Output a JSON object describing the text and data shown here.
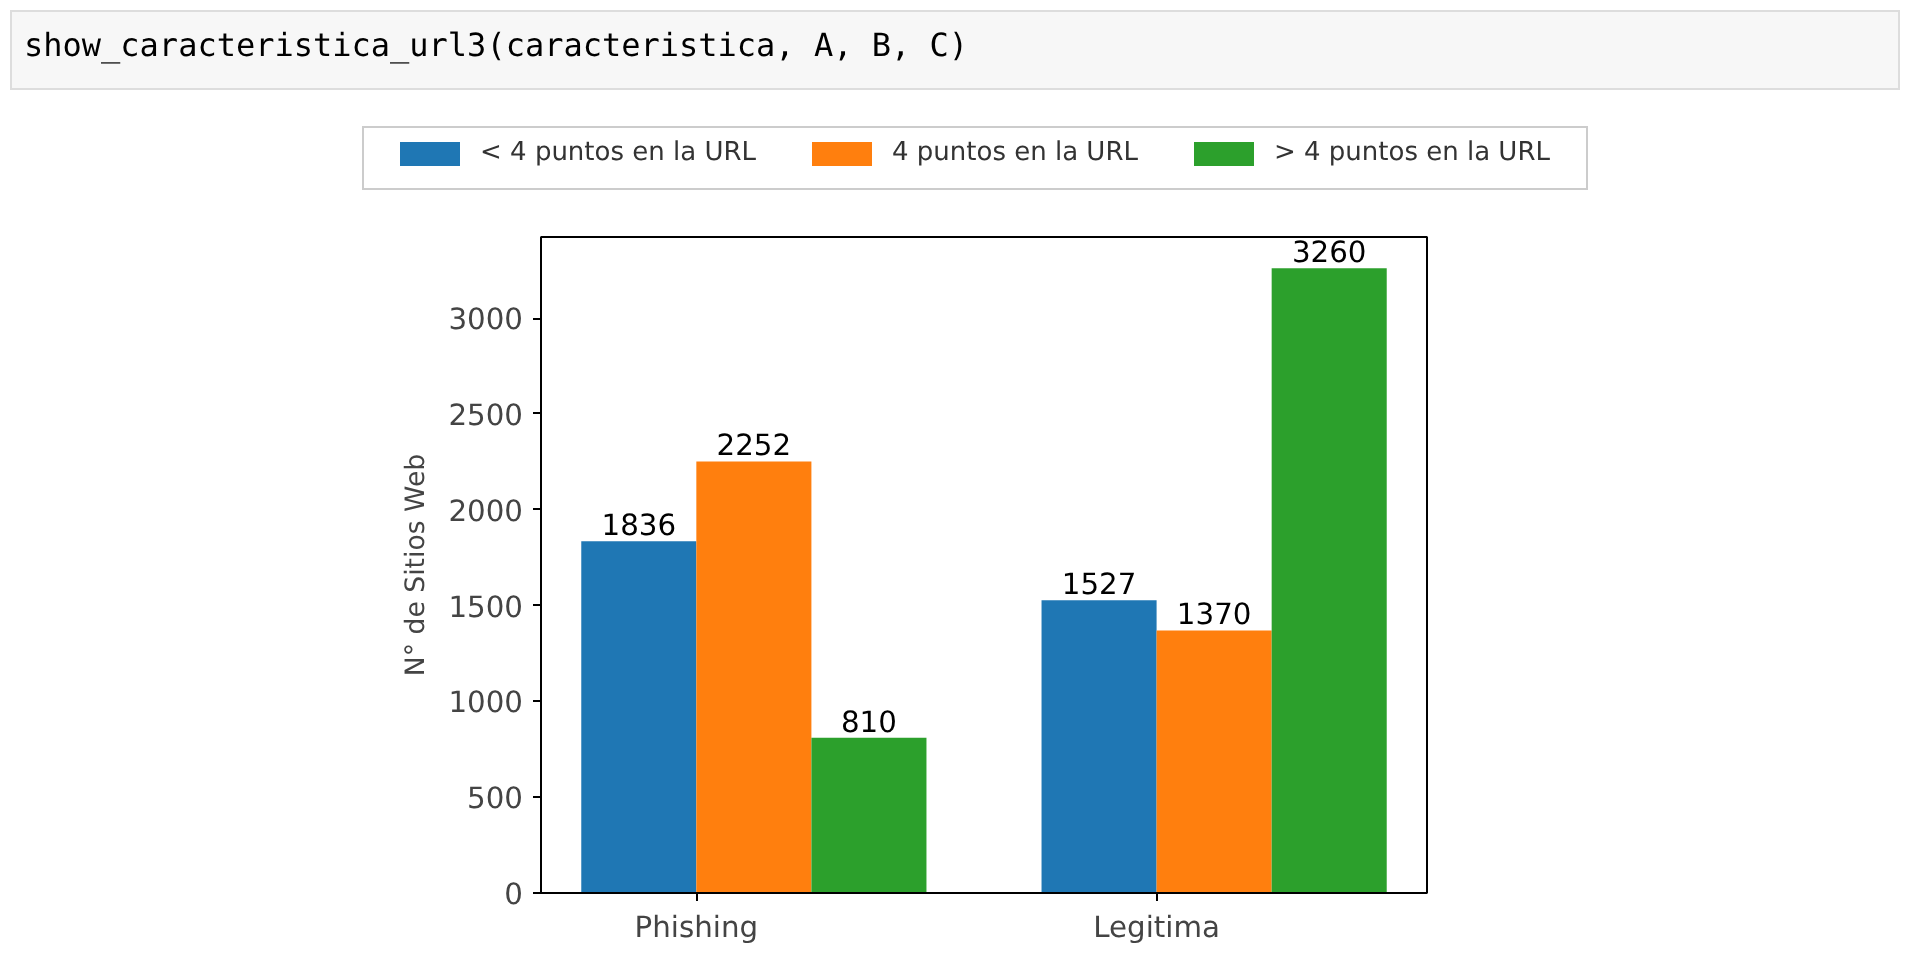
{
  "chart_data": {
    "type": "bar",
    "ylabel": "N° de Sitios Web",
    "categories": [
      "Phishing",
      "Legitima"
    ],
    "series": [
      {
        "name": "< 4 puntos en la URL",
        "color": "#1f77b4",
        "values": [
          1836,
          1527
        ]
      },
      {
        "name": "4 puntos en la URL",
        "color": "#ff7f0e",
        "values": [
          2252,
          1370
        ]
      },
      {
        "name": "> 4 puntos en la URL",
        "color": "#2ca02c",
        "values": [
          810,
          3260
        ]
      }
    ],
    "ylim": [
      0,
      3423
    ],
    "yticks": [
      0,
      500,
      1000,
      1500,
      2000,
      2500,
      3000
    ],
    "grid": false,
    "legend": "top",
    "data_labels": true,
    "annotations": [
      "show_caracteristica_url3(caracteristica, A, B, C)"
    ]
  }
}
